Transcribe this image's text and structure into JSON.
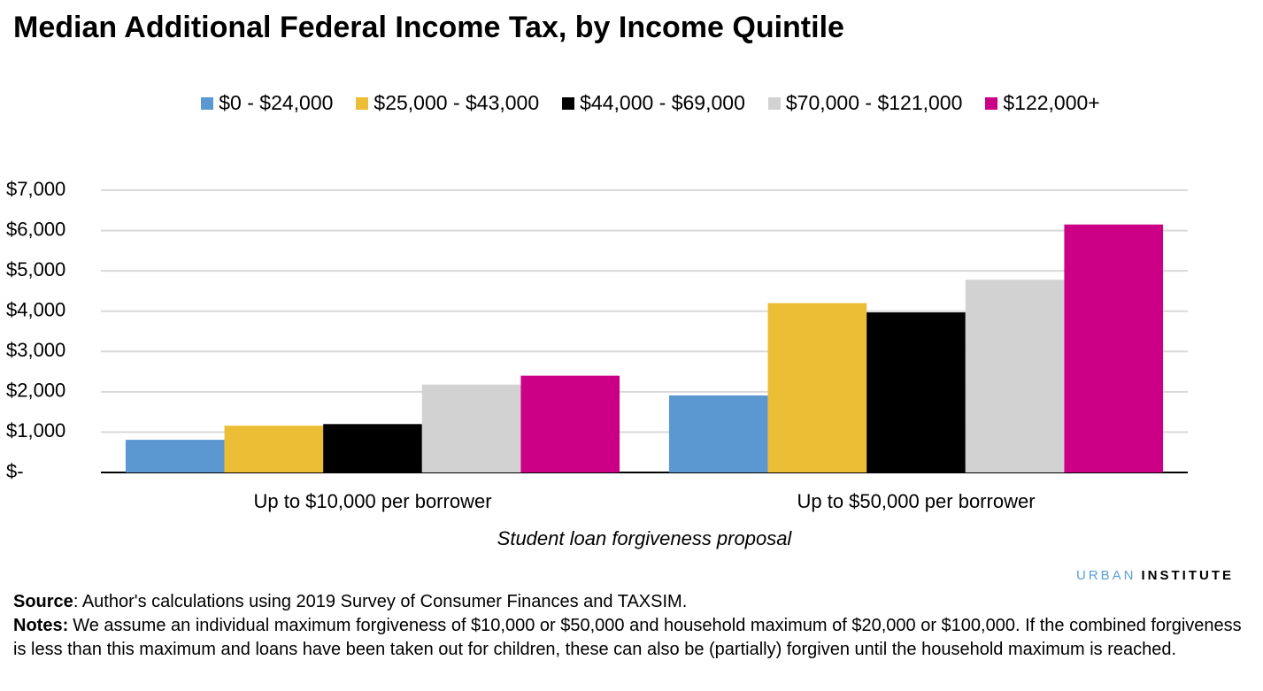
{
  "chart_data": {
    "type": "bar",
    "title": "Median Additional Federal Income Tax, by Income Quintile",
    "categories": [
      "Up to $10,000 per borrower",
      "Up to $50,000 per borrower"
    ],
    "x_label": "Student loan forgiveness proposal",
    "series": [
      {
        "name": "$0 - $24,000",
        "color": "#5b97d1",
        "values": [
          810,
          1910
        ]
      },
      {
        "name": "$25,000 - $43,000",
        "color": "#ecbe35",
        "values": [
          1160,
          4200
        ]
      },
      {
        "name": "$44,000 - $69,000",
        "color": "#000000",
        "values": [
          1200,
          3970
        ]
      },
      {
        "name": "$70,000 - $121,000",
        "color": "#d2d2d2",
        "values": [
          2180,
          4780
        ]
      },
      {
        "name": "$122,000+",
        "color": "#cc0086",
        "values": [
          2400,
          6150
        ]
      }
    ],
    "ylim": [
      0,
      7000
    ],
    "yticks": [
      {
        "value": 0,
        "label": "$-"
      },
      {
        "value": 1000,
        "label": "$1,000"
      },
      {
        "value": 2000,
        "label": "$2,000"
      },
      {
        "value": 3000,
        "label": "$3,000"
      },
      {
        "value": 4000,
        "label": "$4,000"
      },
      {
        "value": 5000,
        "label": "$5,000"
      },
      {
        "value": 6000,
        "label": "$6,000"
      },
      {
        "value": 7000,
        "label": "$7,000"
      }
    ],
    "grid": true,
    "legend": "top"
  },
  "branding": {
    "first": "URBAN",
    "second": "INSTITUTE"
  },
  "source": {
    "label": "Source",
    "text": ": Author's calculations using 2019 Survey of Consumer Finances and TAXSIM."
  },
  "notes": {
    "label": "Notes:",
    "text": "We assume an individual maximum forgiveness of $10,000 or $50,000 and household maximum of $20,000 or $100,000. If the combined forgiveness is less than this maximum and loans have been taken out for children, these can also be (partially) forgiven until the household maximum is reached."
  }
}
